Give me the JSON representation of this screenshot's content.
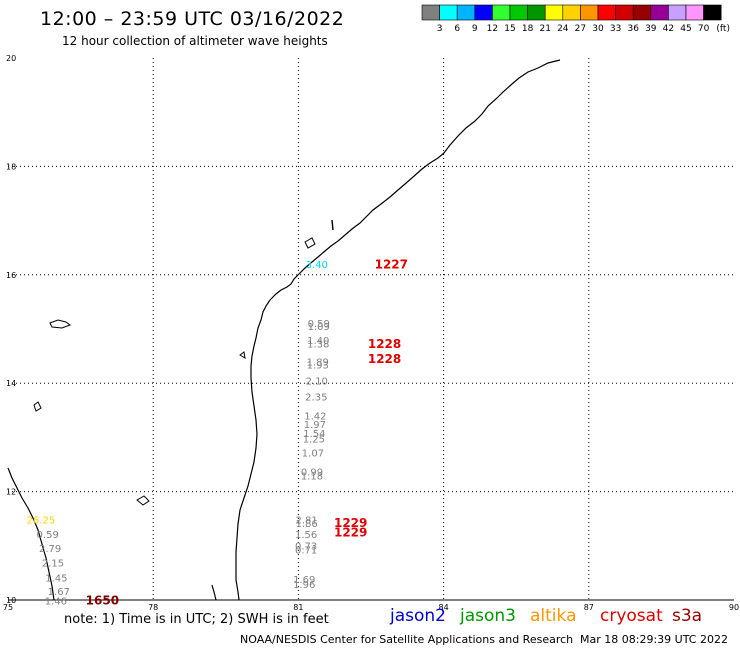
{
  "header": {
    "title": "12:00 – 23:59 UTC 03/16/2022",
    "subtitle": "12 hour collection of altimeter wave heights"
  },
  "legend": {
    "colors": [
      "#808080",
      "#00ffff",
      "#00b4ff",
      "#0000ff",
      "#32ff32",
      "#00c800",
      "#009600",
      "#ffff00",
      "#ffd200",
      "#ff9600",
      "#ff0000",
      "#d20000",
      "#960000",
      "#960096",
      "#c8a0ff",
      "#ff96ff",
      "#000000"
    ],
    "labels": [
      "3",
      "6",
      "9",
      "12",
      "15",
      "18",
      "21",
      "24",
      "27",
      "30",
      "33",
      "36",
      "39",
      "42",
      "45",
      "70",
      "(ft)"
    ]
  },
  "axes": {
    "x_ticks": [
      "75",
      "78",
      "81",
      "84",
      "87",
      "90"
    ],
    "y_ticks": [
      "20",
      "18",
      "16",
      "14",
      "12",
      "10"
    ]
  },
  "observations": [
    {
      "v": "3.40",
      "lon": 81.38,
      "lat": 16.13,
      "c": "#00d8ff"
    },
    {
      "v": "0.59",
      "lon": 81.42,
      "lat": 15.04,
      "c": "#808080"
    },
    {
      "v": "1.09",
      "lon": 81.42,
      "lat": 14.98,
      "c": "#808080"
    },
    {
      "v": "1.40",
      "lon": 81.41,
      "lat": 14.72,
      "c": "#808080"
    },
    {
      "v": "1.38",
      "lon": 81.41,
      "lat": 14.66,
      "c": "#808080"
    },
    {
      "v": "1.89",
      "lon": 81.4,
      "lat": 14.33,
      "c": "#808080"
    },
    {
      "v": "1.93",
      "lon": 81.4,
      "lat": 14.27,
      "c": "#808080"
    },
    {
      "v": "2.10",
      "lon": 81.38,
      "lat": 13.98,
      "c": "#808080"
    },
    {
      "v": "2.35",
      "lon": 81.37,
      "lat": 13.68,
      "c": "#808080"
    },
    {
      "v": "1.42",
      "lon": 81.35,
      "lat": 13.33,
      "c": "#808080"
    },
    {
      "v": "1.97",
      "lon": 81.34,
      "lat": 13.17,
      "c": "#808080"
    },
    {
      "v": "1.54",
      "lon": 81.33,
      "lat": 13.01,
      "c": "#808080"
    },
    {
      "v": "1.25",
      "lon": 81.32,
      "lat": 12.91,
      "c": "#808080"
    },
    {
      "v": "1.07",
      "lon": 81.3,
      "lat": 12.65,
      "c": "#808080"
    },
    {
      "v": "0.99",
      "lon": 81.28,
      "lat": 12.3,
      "c": "#808080"
    },
    {
      "v": "1.18",
      "lon": 81.28,
      "lat": 12.22,
      "c": "#808080"
    },
    {
      "v": "2.81",
      "lon": 81.17,
      "lat": 11.41,
      "c": "#808080"
    },
    {
      "v": "1.86",
      "lon": 81.17,
      "lat": 11.35,
      "c": "#808080"
    },
    {
      "v": "1.56",
      "lon": 81.16,
      "lat": 11.14,
      "c": "#808080"
    },
    {
      "v": "0.73",
      "lon": 81.16,
      "lat": 10.93,
      "c": "#808080"
    },
    {
      "v": "0.71",
      "lon": 81.16,
      "lat": 10.86,
      "c": "#808080"
    },
    {
      "v": "1.69",
      "lon": 81.12,
      "lat": 10.31,
      "c": "#808080"
    },
    {
      "v": "1.96",
      "lon": 81.12,
      "lat": 10.22,
      "c": "#808080"
    },
    {
      "v": "26.25",
      "lon": 75.68,
      "lat": 11.41,
      "c": "#ffd200"
    },
    {
      "v": "0.59",
      "lon": 75.82,
      "lat": 11.14,
      "c": "#808080"
    },
    {
      "v": "2.79",
      "lon": 75.87,
      "lat": 10.89,
      "c": "#808080"
    },
    {
      "v": "2.15",
      "lon": 75.93,
      "lat": 10.62,
      "c": "#808080"
    },
    {
      "v": "1.45",
      "lon": 76.0,
      "lat": 10.34,
      "c": "#808080"
    },
    {
      "v": "1.67",
      "lon": 76.05,
      "lat": 10.09,
      "c": "#808080"
    },
    {
      "v": "1.46",
      "lon": 75.99,
      "lat": 9.92,
      "c": "#808080"
    }
  ],
  "time_labels": [
    {
      "t": "1227",
      "lon": 82.92,
      "lat": 16.12,
      "c": "#e00000"
    },
    {
      "t": "1228",
      "lon": 82.78,
      "lat": 14.65,
      "c": "#e00000"
    },
    {
      "t": "1228",
      "lon": 82.78,
      "lat": 14.37,
      "c": "#e00000"
    },
    {
      "t": "1229",
      "lon": 82.08,
      "lat": 11.35,
      "c": "#e00000"
    },
    {
      "t": "1229",
      "lon": 82.08,
      "lat": 11.17,
      "c": "#e00000"
    },
    {
      "t": "1650",
      "lon": 76.95,
      "lat": 9.92,
      "c": "#800000"
    }
  ],
  "footer": {
    "note": "note:  1) Time is in UTC;  2) SWH is in feet",
    "sat_jason2": "jason2",
    "sat_jason3": "jason3",
    "sat_altika": "altika",
    "sat_cryosat": "cryosat",
    "sat_s3a": "s3a",
    "color_jason2": "#0000cc",
    "color_jason3": "#009600",
    "color_altika": "#ff9600",
    "color_cryosat": "#e00000",
    "color_s3a": "#960000",
    "credit": "NOAA/NESDIS Center for Satellite Applications and Research",
    "timestamp": "Mar 18 08:29:39 UTC 2022"
  }
}
